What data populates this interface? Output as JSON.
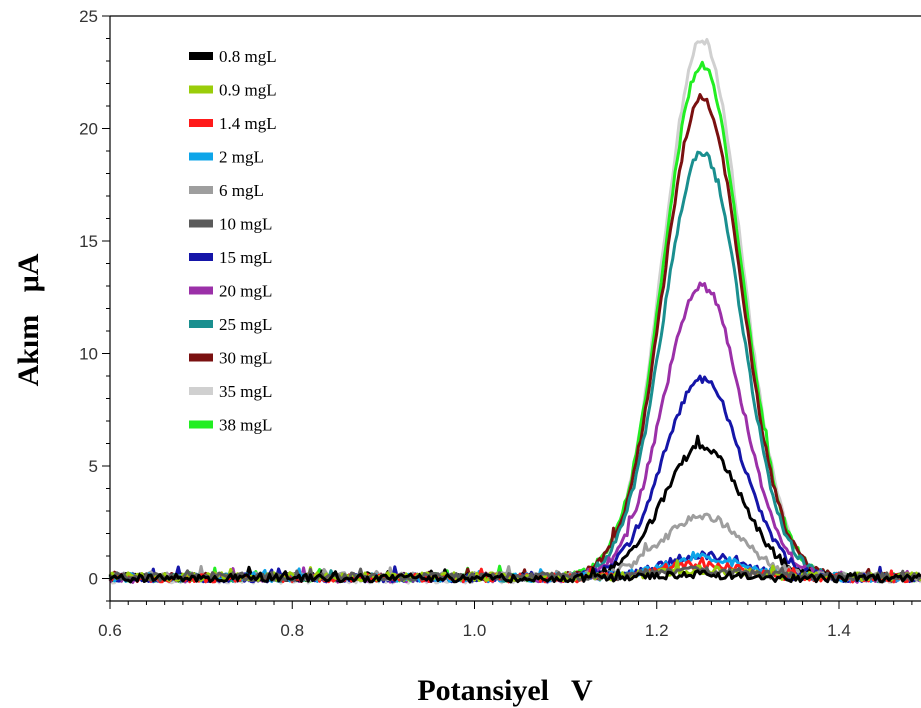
{
  "chart_data": {
    "type": "line",
    "title": "",
    "xlabel": "Potansiyel   V",
    "ylabel": "Akım   μA",
    "xlim": [
      0.6,
      1.49
    ],
    "ylim": [
      -1,
      25
    ],
    "x_ticks": [
      "0.6",
      "0.8",
      "1.0",
      "1.2",
      "1.4"
    ],
    "y_ticks": [
      "0",
      "5",
      "10",
      "15",
      "20",
      "25"
    ],
    "grid": false,
    "legend_position": "top-left",
    "peak_potential": 1.25,
    "series": [
      {
        "name": "0.8 mgL",
        "color": "#000000",
        "peak": 0.15
      },
      {
        "name": "0.9 mgL",
        "color": "#9acd0a",
        "peak": 0.3
      },
      {
        "name": "1.4 mgL",
        "color": "#ff1a1a",
        "peak": 0.6
      },
      {
        "name": "2 mgL",
        "color": "#0ea5e9",
        "peak": 0.9
      },
      {
        "name": "6 mgL",
        "color": "#9e9e9e",
        "peak": 2.7
      },
      {
        "name": "10 mgL",
        "color": "#5a5a5a",
        "peak": 0.3
      },
      {
        "name": "15 mgL",
        "color": "#1515a8",
        "peak": 1.0
      },
      {
        "name": "20 mgL",
        "color": "#9b30a8",
        "peak": 13.0
      },
      {
        "name": "25 mgL",
        "color": "#1a8f8f",
        "peak": 18.9
      },
      {
        "name": "30 mgL",
        "color": "#7a1010",
        "peak": 21.3
      },
      {
        "name": "35 mgL",
        "color": "#d0d0d0",
        "peak": 24.0
      },
      {
        "name": "38 mgL",
        "color": "#22ee22",
        "peak": 22.8
      }
    ],
    "extra_series": [
      {
        "color": "#000000",
        "peak": 5.8
      },
      {
        "color": "#1515a8",
        "peak": 8.8
      }
    ]
  }
}
